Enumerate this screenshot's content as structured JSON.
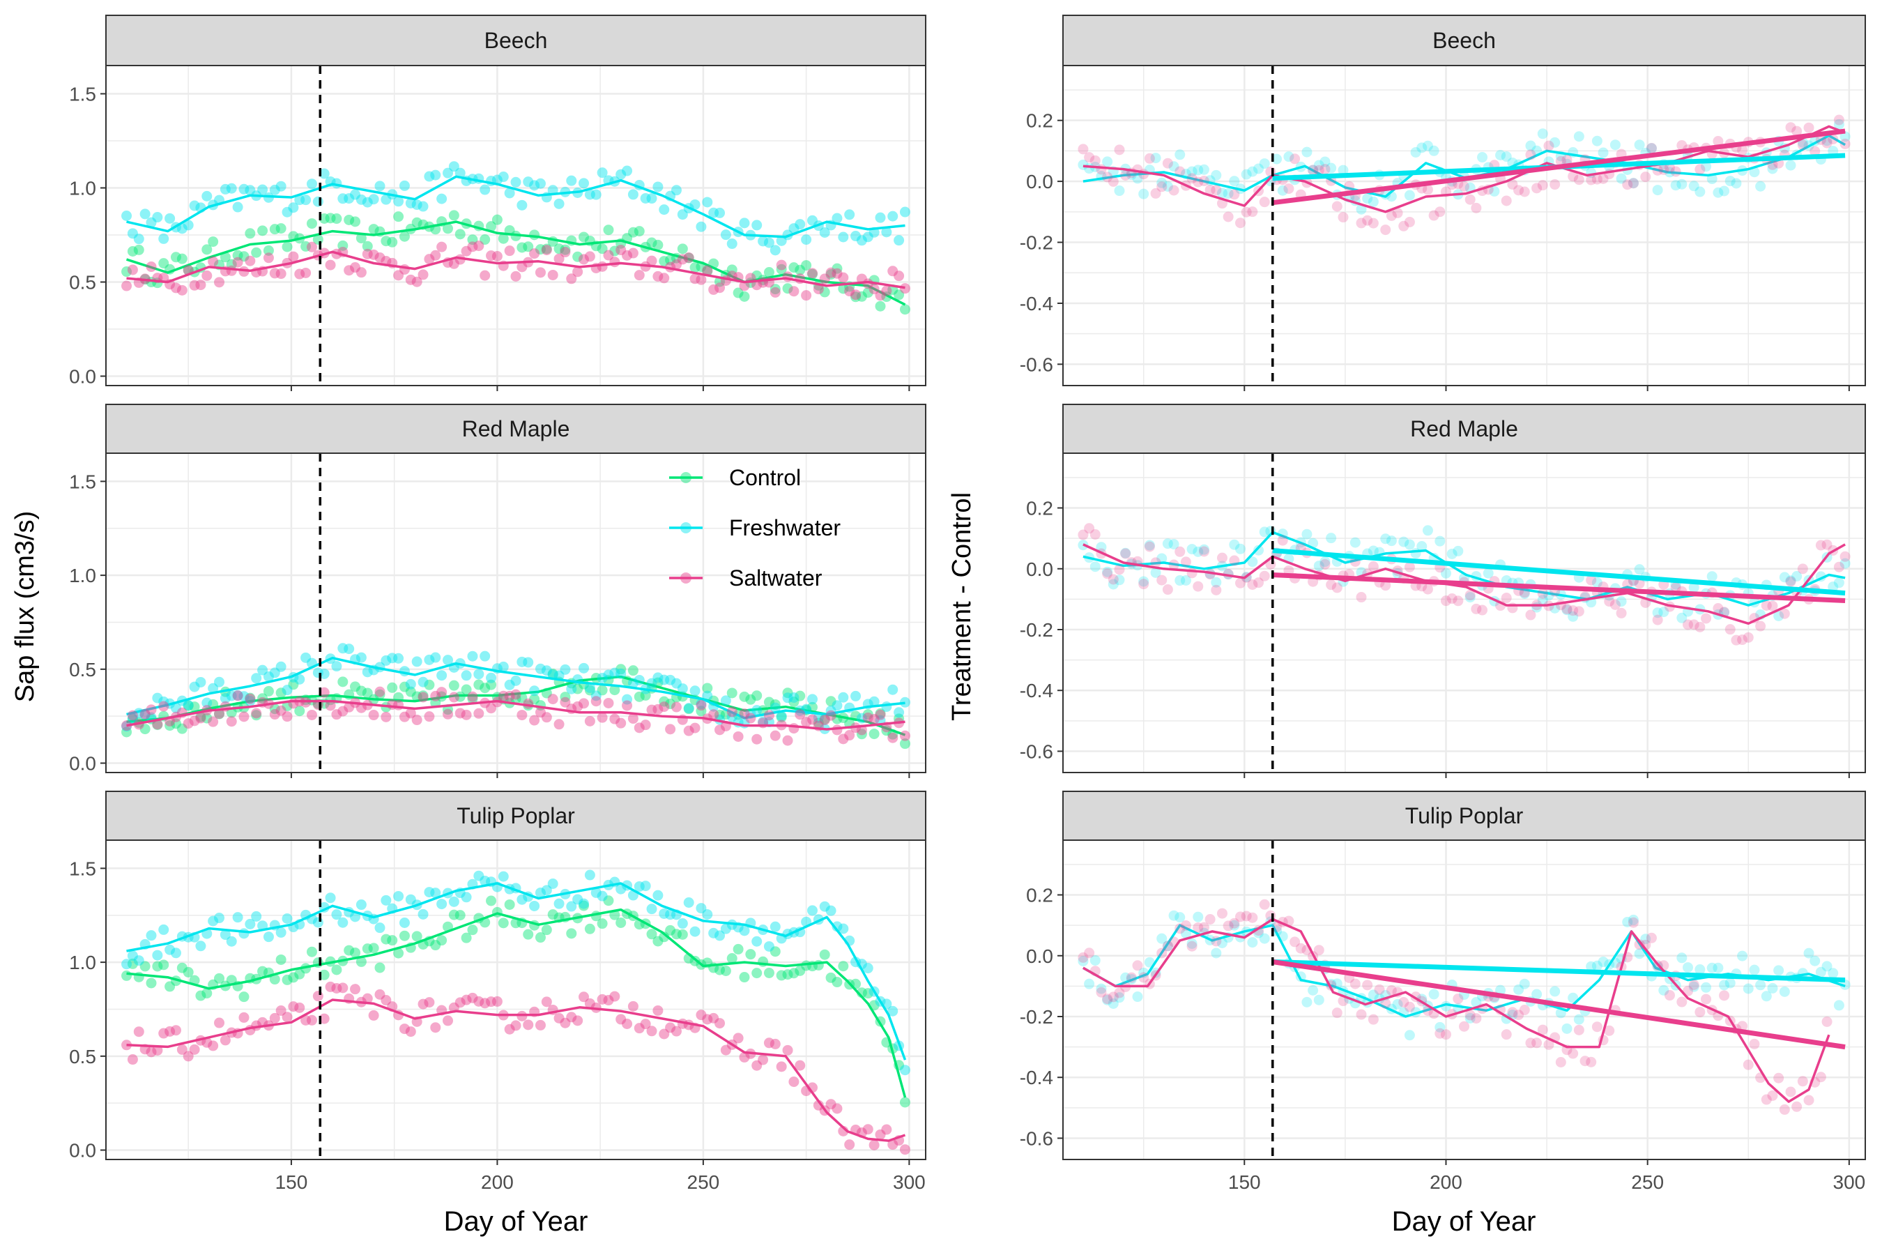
{
  "figure": {
    "left_ylabel": "Sap flux (cm3/s)",
    "right_ylabel": "Treatment - Control",
    "xlabel": "Day of Year"
  },
  "colors": {
    "control": "#00E676",
    "freshwater": "#00E5EE",
    "saltwater": "#E83E8C",
    "strip_fill": "#D9D9D9",
    "grid": "#EBEBEB",
    "vline": "#000000"
  },
  "legend": {
    "items": [
      {
        "label": "Control",
        "color": "#00E676"
      },
      {
        "label": "Freshwater",
        "color": "#00E5EE"
      },
      {
        "label": "Saltwater",
        "color": "#E83E8C"
      }
    ]
  },
  "chart_data": [
    {
      "type": "scatter",
      "title": "Beech",
      "panel": "left",
      "xlabel": "Day of Year",
      "ylabel": "Sap flux (cm3/s)",
      "xlim": [
        105,
        304
      ],
      "ylim": [
        -0.05,
        1.65
      ],
      "xticks": [
        150,
        200,
        250,
        300
      ],
      "yticks": [
        0.0,
        0.5,
        1.0,
        1.5
      ],
      "vline_x": 157,
      "series": [
        {
          "name": "Control",
          "key": "control",
          "x": [
            110,
            120,
            130,
            140,
            150,
            160,
            170,
            180,
            190,
            200,
            210,
            220,
            230,
            240,
            250,
            260,
            270,
            280,
            290,
            299
          ],
          "y": [
            0.62,
            0.55,
            0.63,
            0.7,
            0.72,
            0.77,
            0.75,
            0.78,
            0.82,
            0.76,
            0.74,
            0.7,
            0.72,
            0.66,
            0.6,
            0.5,
            0.54,
            0.5,
            0.48,
            0.38
          ]
        },
        {
          "name": "Freshwater",
          "key": "freshwater",
          "x": [
            110,
            120,
            130,
            140,
            150,
            160,
            170,
            180,
            190,
            200,
            210,
            220,
            230,
            240,
            250,
            260,
            270,
            280,
            290,
            299
          ],
          "y": [
            0.82,
            0.77,
            0.9,
            0.96,
            0.95,
            1.02,
            0.98,
            0.94,
            1.06,
            1.02,
            0.96,
            0.98,
            1.04,
            0.96,
            0.86,
            0.75,
            0.74,
            0.82,
            0.78,
            0.8
          ]
        },
        {
          "name": "Saltwater",
          "key": "saltwater",
          "x": [
            110,
            120,
            130,
            140,
            150,
            160,
            170,
            180,
            190,
            200,
            210,
            220,
            230,
            240,
            250,
            260,
            270,
            280,
            290,
            299
          ],
          "y": [
            0.52,
            0.5,
            0.58,
            0.56,
            0.6,
            0.66,
            0.6,
            0.57,
            0.63,
            0.6,
            0.61,
            0.58,
            0.6,
            0.58,
            0.54,
            0.5,
            0.52,
            0.48,
            0.5,
            0.47
          ]
        }
      ]
    },
    {
      "type": "scatter",
      "title": "Red Maple",
      "panel": "left",
      "xlabel": "Day of Year",
      "ylabel": "Sap flux (cm3/s)",
      "xlim": [
        105,
        304
      ],
      "ylim": [
        -0.05,
        1.65
      ],
      "xticks": [
        150,
        200,
        250,
        300
      ],
      "yticks": [
        0.0,
        0.5,
        1.0,
        1.5
      ],
      "vline_x": 157,
      "series": [
        {
          "name": "Control",
          "key": "control",
          "x": [
            110,
            120,
            130,
            140,
            150,
            160,
            170,
            180,
            190,
            200,
            210,
            220,
            230,
            240,
            250,
            260,
            270,
            280,
            290,
            299
          ],
          "y": [
            0.22,
            0.24,
            0.29,
            0.33,
            0.35,
            0.36,
            0.34,
            0.33,
            0.36,
            0.36,
            0.38,
            0.44,
            0.46,
            0.4,
            0.34,
            0.28,
            0.3,
            0.26,
            0.22,
            0.15
          ]
        },
        {
          "name": "Freshwater",
          "key": "freshwater",
          "x": [
            110,
            120,
            130,
            140,
            150,
            160,
            170,
            180,
            190,
            200,
            210,
            220,
            230,
            240,
            250,
            260,
            270,
            280,
            290,
            299
          ],
          "y": [
            0.26,
            0.31,
            0.37,
            0.41,
            0.46,
            0.56,
            0.51,
            0.47,
            0.53,
            0.49,
            0.46,
            0.43,
            0.41,
            0.38,
            0.34,
            0.24,
            0.28,
            0.26,
            0.3,
            0.32
          ]
        },
        {
          "name": "Saltwater",
          "key": "saltwater",
          "x": [
            110,
            120,
            130,
            140,
            150,
            160,
            170,
            180,
            190,
            200,
            210,
            220,
            230,
            240,
            250,
            260,
            270,
            280,
            290,
            299
          ],
          "y": [
            0.2,
            0.24,
            0.28,
            0.3,
            0.33,
            0.33,
            0.31,
            0.29,
            0.31,
            0.33,
            0.3,
            0.27,
            0.27,
            0.25,
            0.24,
            0.2,
            0.2,
            0.18,
            0.2,
            0.22
          ]
        }
      ]
    },
    {
      "type": "scatter",
      "title": "Tulip Poplar",
      "panel": "left",
      "xlabel": "Day of Year",
      "ylabel": "Sap flux (cm3/s)",
      "xlim": [
        105,
        304
      ],
      "ylim": [
        -0.05,
        1.65
      ],
      "xticks": [
        150,
        200,
        250,
        300
      ],
      "yticks": [
        0.0,
        0.5,
        1.0,
        1.5
      ],
      "vline_x": 157,
      "series": [
        {
          "name": "Control",
          "key": "control",
          "x": [
            110,
            120,
            130,
            140,
            150,
            160,
            170,
            180,
            190,
            200,
            210,
            220,
            230,
            240,
            250,
            260,
            270,
            280,
            285,
            290,
            295,
            299
          ],
          "y": [
            0.94,
            0.92,
            0.86,
            0.9,
            0.96,
            1.0,
            1.04,
            1.1,
            1.18,
            1.26,
            1.2,
            1.24,
            1.28,
            1.16,
            0.98,
            1.0,
            0.98,
            1.0,
            0.9,
            0.78,
            0.6,
            0.28
          ]
        },
        {
          "name": "Freshwater",
          "key": "freshwater",
          "x": [
            110,
            120,
            130,
            140,
            150,
            160,
            170,
            180,
            190,
            200,
            210,
            220,
            230,
            240,
            250,
            260,
            270,
            280,
            285,
            290,
            295,
            299
          ],
          "y": [
            1.06,
            1.1,
            1.18,
            1.16,
            1.2,
            1.3,
            1.24,
            1.3,
            1.38,
            1.42,
            1.34,
            1.38,
            1.42,
            1.3,
            1.22,
            1.2,
            1.14,
            1.24,
            1.1,
            0.9,
            0.72,
            0.48
          ]
        },
        {
          "name": "Saltwater",
          "key": "saltwater",
          "x": [
            110,
            120,
            130,
            140,
            150,
            160,
            170,
            180,
            190,
            200,
            210,
            220,
            230,
            240,
            250,
            260,
            270,
            280,
            285,
            290,
            295,
            299
          ],
          "y": [
            0.56,
            0.55,
            0.6,
            0.65,
            0.68,
            0.8,
            0.78,
            0.7,
            0.74,
            0.72,
            0.72,
            0.76,
            0.74,
            0.7,
            0.66,
            0.52,
            0.5,
            0.2,
            0.1,
            0.06,
            0.05,
            0.08
          ]
        }
      ]
    },
    {
      "type": "line",
      "title": "Beech",
      "panel": "right",
      "xlabel": "Day of Year",
      "ylabel": "Treatment - Control",
      "xlim": [
        105,
        304
      ],
      "ylim": [
        -0.67,
        0.38
      ],
      "xticks": [
        150,
        200,
        250,
        300
      ],
      "yticks": [
        -0.6,
        -0.4,
        -0.2,
        0.0,
        0.2
      ],
      "vline_x": 157,
      "series": [
        {
          "name": "Freshwater",
          "key": "freshwater",
          "x": [
            110,
            120,
            130,
            140,
            150,
            157,
            165,
            175,
            185,
            195,
            205,
            215,
            225,
            235,
            245,
            255,
            265,
            275,
            285,
            295,
            299
          ],
          "y": [
            0.0,
            0.02,
            0.03,
            0.0,
            -0.03,
            0.02,
            0.05,
            -0.02,
            -0.05,
            0.06,
            0.01,
            0.04,
            0.1,
            0.08,
            0.06,
            0.03,
            0.02,
            0.04,
            0.08,
            0.15,
            0.12
          ]
        },
        {
          "name": "Saltwater",
          "key": "saltwater",
          "x": [
            110,
            120,
            130,
            140,
            150,
            157,
            165,
            175,
            185,
            195,
            205,
            215,
            225,
            235,
            245,
            255,
            265,
            275,
            285,
            295,
            299
          ],
          "y": [
            0.05,
            0.04,
            0.02,
            -0.04,
            -0.08,
            0.02,
            0.0,
            -0.06,
            -0.1,
            -0.05,
            -0.04,
            0.0,
            0.06,
            0.02,
            0.04,
            0.06,
            0.1,
            0.08,
            0.12,
            0.18,
            0.16
          ]
        }
      ],
      "trends": [
        {
          "key": "freshwater",
          "x": [
            157,
            299
          ],
          "y": [
            0.01,
            0.085
          ]
        },
        {
          "key": "saltwater",
          "x": [
            157,
            299
          ],
          "y": [
            -0.07,
            0.165
          ]
        }
      ]
    },
    {
      "type": "line",
      "title": "Red Maple",
      "panel": "right",
      "xlabel": "Day of Year",
      "ylabel": "Treatment - Control",
      "xlim": [
        105,
        304
      ],
      "ylim": [
        -0.67,
        0.38
      ],
      "xticks": [
        150,
        200,
        250,
        300
      ],
      "yticks": [
        -0.6,
        -0.4,
        -0.2,
        0.0,
        0.2
      ],
      "vline_x": 157,
      "series": [
        {
          "name": "Freshwater",
          "key": "freshwater",
          "x": [
            110,
            120,
            130,
            140,
            150,
            157,
            165,
            175,
            185,
            195,
            205,
            215,
            225,
            235,
            245,
            255,
            265,
            275,
            285,
            295,
            299
          ],
          "y": [
            0.04,
            0.01,
            0.02,
            0.0,
            0.02,
            0.12,
            0.08,
            0.02,
            0.05,
            0.06,
            -0.02,
            -0.06,
            -0.08,
            -0.1,
            -0.06,
            -0.1,
            -0.08,
            -0.12,
            -0.08,
            -0.02,
            -0.03
          ]
        },
        {
          "name": "Saltwater",
          "key": "saltwater",
          "x": [
            110,
            120,
            130,
            140,
            150,
            157,
            165,
            175,
            185,
            195,
            205,
            215,
            225,
            235,
            245,
            255,
            265,
            275,
            285,
            295,
            299
          ],
          "y": [
            0.08,
            0.02,
            0.0,
            -0.01,
            -0.03,
            0.04,
            0.0,
            -0.04,
            0.0,
            -0.04,
            -0.06,
            -0.12,
            -0.12,
            -0.1,
            -0.08,
            -0.12,
            -0.14,
            -0.18,
            -0.12,
            0.05,
            0.08
          ]
        }
      ],
      "trends": [
        {
          "key": "freshwater",
          "x": [
            157,
            299
          ],
          "y": [
            0.06,
            -0.08
          ]
        },
        {
          "key": "saltwater",
          "x": [
            157,
            299
          ],
          "y": [
            -0.02,
            -0.105
          ]
        }
      ]
    },
    {
      "type": "line",
      "title": "Tulip Poplar",
      "panel": "right",
      "xlabel": "Day of Year",
      "ylabel": "Treatment - Control",
      "xlim": [
        105,
        304
      ],
      "ylim": [
        -0.67,
        0.38
      ],
      "xticks": [
        150,
        200,
        250,
        300
      ],
      "yticks": [
        -0.6,
        -0.4,
        -0.2,
        0.0,
        0.2
      ],
      "vline_x": 157,
      "series": [
        {
          "name": "Freshwater",
          "key": "freshwater",
          "x": [
            110,
            118,
            126,
            134,
            142,
            150,
            157,
            164,
            172,
            180,
            190,
            200,
            210,
            220,
            230,
            238,
            246,
            252,
            260,
            270,
            280,
            290,
            299
          ],
          "y": [
            -0.04,
            -0.1,
            -0.06,
            0.1,
            0.05,
            0.08,
            0.1,
            -0.08,
            -0.1,
            -0.14,
            -0.2,
            -0.16,
            -0.18,
            -0.14,
            -0.18,
            -0.08,
            0.08,
            -0.04,
            -0.08,
            -0.06,
            -0.08,
            -0.06,
            -0.1
          ]
        },
        {
          "name": "Saltwater",
          "key": "saltwater",
          "x": [
            110,
            118,
            126,
            134,
            142,
            150,
            157,
            164,
            172,
            180,
            190,
            200,
            210,
            220,
            230,
            238,
            246,
            252,
            260,
            270,
            280,
            285,
            290,
            295
          ],
          "y": [
            -0.04,
            -0.1,
            -0.1,
            0.05,
            0.08,
            0.06,
            0.12,
            0.08,
            -0.12,
            -0.16,
            -0.12,
            -0.2,
            -0.16,
            -0.24,
            -0.3,
            -0.3,
            0.08,
            -0.02,
            -0.14,
            -0.2,
            -0.42,
            -0.48,
            -0.44,
            -0.26
          ]
        }
      ],
      "trends": [
        {
          "key": "freshwater",
          "x": [
            157,
            299
          ],
          "y": [
            -0.02,
            -0.08
          ]
        },
        {
          "key": "saltwater",
          "x": [
            157,
            299
          ],
          "y": [
            -0.02,
            -0.3
          ]
        }
      ]
    }
  ]
}
